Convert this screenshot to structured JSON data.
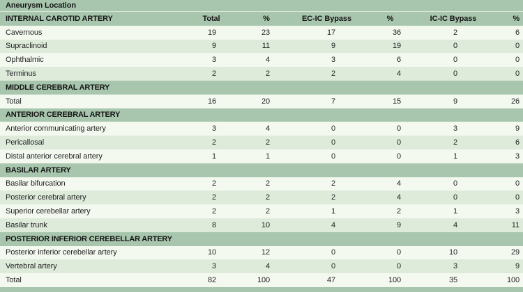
{
  "title": "Aneurysm Location",
  "columns": [
    "Total",
    "%",
    "EC-IC Bypass",
    "%",
    "IC-IC Bypass",
    "%"
  ],
  "sections": [
    {
      "header": "INTERNAL CAROTID ARTERY",
      "rows": [
        [
          "Cavernous",
          19,
          23,
          17,
          36,
          2,
          6
        ],
        [
          "Supraclinoid",
          9,
          11,
          9,
          19,
          0,
          0
        ],
        [
          "Ophthalmic",
          3,
          4,
          3,
          6,
          0,
          0
        ],
        [
          "Terminus",
          2,
          2,
          2,
          4,
          0,
          0
        ]
      ]
    },
    {
      "header": "MIDDLE CEREBRAL ARTERY",
      "rows": [
        [
          "Total",
          16,
          20,
          7,
          15,
          9,
          26
        ]
      ]
    },
    {
      "header": "ANTERIOR CEREBRAL ARTERY",
      "rows": [
        [
          "Anterior communicating artery",
          3,
          4,
          0,
          0,
          3,
          9
        ],
        [
          "Pericallosal",
          2,
          2,
          0,
          0,
          2,
          6
        ],
        [
          "Distal anterior cerebral artery",
          1,
          1,
          0,
          0,
          1,
          3
        ]
      ]
    },
    {
      "header": "BASILAR ARTERY",
      "rows": [
        [
          "Basilar bifurcation",
          2,
          2,
          2,
          4,
          0,
          0
        ],
        [
          "Posterior cerebral artery",
          2,
          2,
          2,
          4,
          0,
          0
        ],
        [
          "Superior cerebellar artery",
          2,
          2,
          1,
          2,
          1,
          3
        ],
        [
          "Basilar trunk",
          8,
          10,
          4,
          9,
          4,
          11
        ]
      ]
    },
    {
      "header": "POSTERIOR INFERIOR CEREBELLAR ARTERY",
      "rows": [
        [
          "Posterior inferior cerebellar artery",
          10,
          12,
          0,
          0,
          10,
          29
        ],
        [
          "Vertebral artery",
          3,
          4,
          0,
          0,
          3,
          9
        ]
      ]
    }
  ],
  "grand_total_row": [
    "Total",
    82,
    100,
    47,
    100,
    35,
    100
  ],
  "colors": {
    "band_green": "#a8c6ad",
    "row_tint": "#deebdb",
    "row_white": "#f4f9f0",
    "header_text": "#141414",
    "data_text": "#232323"
  }
}
